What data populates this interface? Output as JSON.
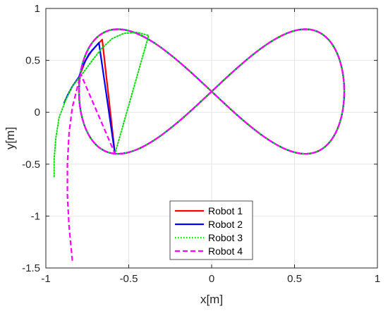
{
  "chart_data": {
    "type": "line",
    "title": "",
    "xlabel": "x[m]",
    "ylabel": "y[m]",
    "xlim": [
      -1,
      1
    ],
    "ylim": [
      -1.5,
      1
    ],
    "xticks": [
      -1,
      -0.5,
      0,
      0.5,
      1
    ],
    "yticks": [
      -1.5,
      -1,
      -0.5,
      0,
      0.5,
      1
    ],
    "xtick_labels": [
      "-1",
      "-0.5",
      "0",
      "0.5",
      "1"
    ],
    "ytick_labels": [
      "-1.5",
      "-1",
      "-0.5",
      "0",
      "0.5",
      "1"
    ],
    "grid": true,
    "legend_position": "bottom-center",
    "reference_curve": {
      "shape": "figure-eight",
      "center": [
        0,
        0.2
      ],
      "x_amplitude": 0.8,
      "y_amplitude": 0.6,
      "note_hidden": ""
    },
    "series": [
      {
        "name": "Robot 1",
        "color": "#ff0000",
        "style": "solid",
        "approach": [
          [
            -0.8,
            0.32
          ],
          [
            -0.79,
            0.38
          ],
          [
            -0.76,
            0.5
          ],
          [
            -0.72,
            0.6
          ],
          [
            -0.66,
            0.7
          ]
        ]
      },
      {
        "name": "Robot 2",
        "color": "#0000ff",
        "style": "solid",
        "approach": [
          [
            -0.89,
            0.09
          ],
          [
            -0.87,
            0.16
          ],
          [
            -0.84,
            0.25
          ],
          [
            -0.8,
            0.34
          ],
          [
            -0.78,
            0.44
          ],
          [
            -0.74,
            0.56
          ],
          [
            -0.68,
            0.67
          ]
        ]
      },
      {
        "name": "Robot 3",
        "color": "#00e000",
        "style": "dotted",
        "approach": [
          [
            -0.95,
            -0.62
          ],
          [
            -0.95,
            -0.45
          ],
          [
            -0.94,
            -0.25
          ],
          [
            -0.92,
            -0.05
          ],
          [
            -0.88,
            0.12
          ],
          [
            -0.84,
            0.25
          ],
          [
            -0.78,
            0.37
          ],
          [
            -0.72,
            0.5
          ],
          [
            -0.66,
            0.62
          ],
          [
            -0.6,
            0.71
          ],
          [
            -0.53,
            0.76
          ],
          [
            -0.45,
            0.77
          ],
          [
            -0.38,
            0.74
          ]
        ]
      },
      {
        "name": "Robot 4",
        "color": "#ff00ff",
        "style": "dashed",
        "approach": [
          [
            -0.84,
            -1.43
          ],
          [
            -0.86,
            -1.1
          ],
          [
            -0.87,
            -0.8
          ],
          [
            -0.87,
            -0.5
          ],
          [
            -0.86,
            -0.2
          ],
          [
            -0.84,
            0.05
          ],
          [
            -0.81,
            0.24
          ],
          [
            -0.79,
            0.37
          ]
        ]
      }
    ]
  }
}
